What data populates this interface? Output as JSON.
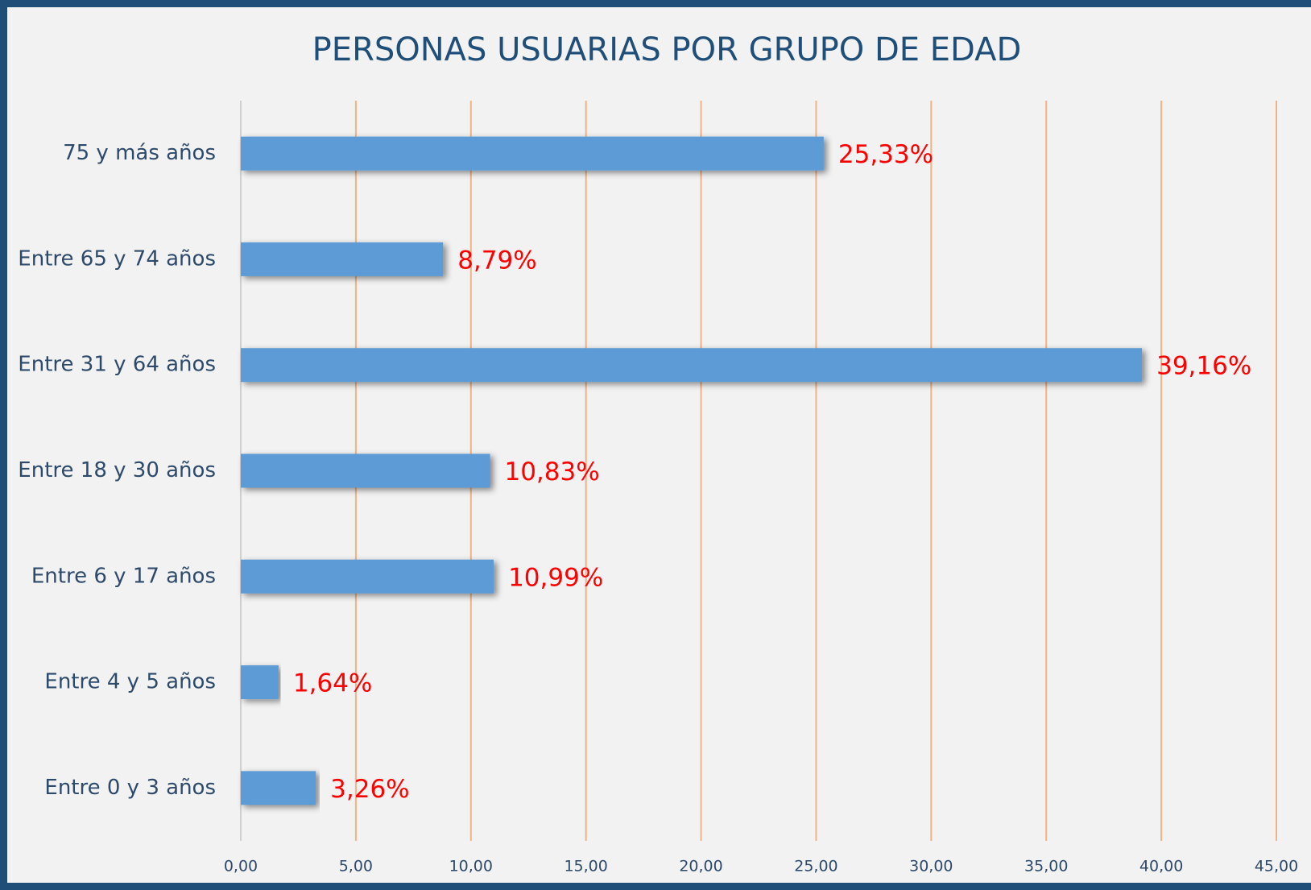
{
  "chart_data": {
    "type": "bar",
    "orientation": "horizontal",
    "title": "PERSONAS USUARIAS POR GRUPO DE EDAD",
    "categories": [
      "75 y más años",
      "Entre 65 y 74 años",
      "Entre 31 y 64 años",
      "Entre 18 y 30 años",
      "Entre 6 y 17 años",
      "Entre 4 y 5 años",
      "Entre 0 y 3 años"
    ],
    "values": [
      25.33,
      8.79,
      39.16,
      10.83,
      10.99,
      1.64,
      3.26
    ],
    "value_labels": [
      "25,33%",
      "8,79%",
      "39,16%",
      "10,83%",
      "10,99%",
      "1,64%",
      "3,26%"
    ],
    "color": "#5b9bd5",
    "xlim": [
      0,
      45
    ],
    "xticks": [
      {
        "value": 0,
        "label": "0,00"
      },
      {
        "value": 5,
        "label": "5,00"
      },
      {
        "value": 10,
        "label": "10,00"
      },
      {
        "value": 15,
        "label": "15,00"
      },
      {
        "value": 20,
        "label": "20,00"
      },
      {
        "value": 25,
        "label": "25,00"
      },
      {
        "value": 30,
        "label": "30,00"
      },
      {
        "value": 35,
        "label": "35,00"
      },
      {
        "value": 40,
        "label": "40,00"
      },
      {
        "value": 45,
        "label": "45,00"
      }
    ],
    "grid": true
  }
}
